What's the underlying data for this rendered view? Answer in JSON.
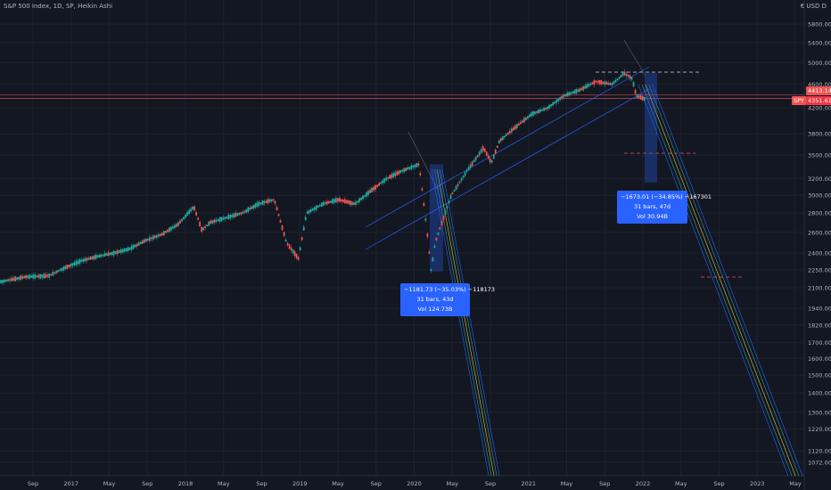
{
  "header": {
    "title": "S&P 500 Index, 1D, SP, Heikin Ashi",
    "currency": "€ USD D"
  },
  "price_tags": {
    "upper": "4413.14",
    "symbol": "SPY",
    "lower": "4351.61"
  },
  "measures": [
    {
      "line1": "−1181.73 (−35.03%) −118173",
      "line2": "31 bars, 43d",
      "line3": "Vol 124.73B"
    },
    {
      "line1": "−1673.01 (−34.85%) −167301",
      "line2": "31 bars, 47d",
      "line3": "Vol 30.94B"
    }
  ],
  "colors": {
    "background": "#131722",
    "up": "#26a69a",
    "down": "#ef5350",
    "trendline": "#2962ff",
    "measure": "#2962ff",
    "axis_text": "#b2b5be"
  },
  "chart_data": {
    "type": "candlestick",
    "y_scale": "log",
    "y_ticks": [
      1072,
      1120,
      1220,
      1300,
      1400,
      1500,
      1600,
      1700,
      1820,
      1940,
      2100,
      2250,
      2400,
      2600,
      2800,
      3000,
      3200,
      3500,
      3800,
      4200,
      4600,
      5000,
      5400,
      5800
    ],
    "y_tick_labels": [
      "1072.00",
      "1120.00",
      "1220.00",
      "1300.00",
      "1400.00",
      "1500.00",
      "1600.00",
      "1700.00",
      "1820.00",
      "1940.00",
      "2100.00",
      "2250.00",
      "2400.00",
      "2600.00",
      "2800.00",
      "3000.00",
      "3200.00",
      "3500.00",
      "3800.00",
      "4200.00",
      "4600.00",
      "5000.00",
      "5400.00",
      "5800.00"
    ],
    "x_labels": [
      "Sep",
      "2017",
      "May",
      "Sep",
      "2018",
      "May",
      "Sep",
      "2019",
      "May",
      "Sep",
      "2020",
      "May",
      "Sep",
      "2021",
      "May",
      "Sep",
      "2022",
      "May",
      "Sep",
      "2023",
      "May"
    ],
    "series_path": [
      [
        0,
        2150
      ],
      [
        0.03,
        2190
      ],
      [
        0.06,
        2200
      ],
      [
        0.08,
        2270
      ],
      [
        0.1,
        2330
      ],
      [
        0.12,
        2370
      ],
      [
        0.14,
        2400
      ],
      [
        0.16,
        2440
      ],
      [
        0.18,
        2520
      ],
      [
        0.2,
        2580
      ],
      [
        0.22,
        2680
      ],
      [
        0.24,
        2870
      ],
      [
        0.25,
        2620
      ],
      [
        0.26,
        2700
      ],
      [
        0.28,
        2750
      ],
      [
        0.3,
        2800
      ],
      [
        0.32,
        2900
      ],
      [
        0.34,
        2950
      ],
      [
        0.355,
        2500
      ],
      [
        0.37,
        2350
      ],
      [
        0.38,
        2800
      ],
      [
        0.4,
        2900
      ],
      [
        0.42,
        2950
      ],
      [
        0.44,
        2900
      ],
      [
        0.46,
        3050
      ],
      [
        0.48,
        3200
      ],
      [
        0.5,
        3300
      ],
      [
        0.52,
        3380
      ],
      [
        0.53,
        2600
      ],
      [
        0.535,
        2237
      ],
      [
        0.54,
        2500
      ],
      [
        0.56,
        3000
      ],
      [
        0.58,
        3300
      ],
      [
        0.6,
        3600
      ],
      [
        0.61,
        3400
      ],
      [
        0.62,
        3700
      ],
      [
        0.64,
        3900
      ],
      [
        0.66,
        4100
      ],
      [
        0.68,
        4200
      ],
      [
        0.7,
        4400
      ],
      [
        0.72,
        4500
      ],
      [
        0.74,
        4650
      ],
      [
        0.76,
        4600
      ],
      [
        0.775,
        4800
      ],
      [
        0.785,
        4700
      ],
      [
        0.79,
        4400
      ],
      [
        0.8,
        4350
      ]
    ],
    "levels": [
      {
        "value": 4413.14,
        "label": "4413.14"
      },
      {
        "value": 4351.61,
        "label": "4351.61"
      }
    ]
  }
}
